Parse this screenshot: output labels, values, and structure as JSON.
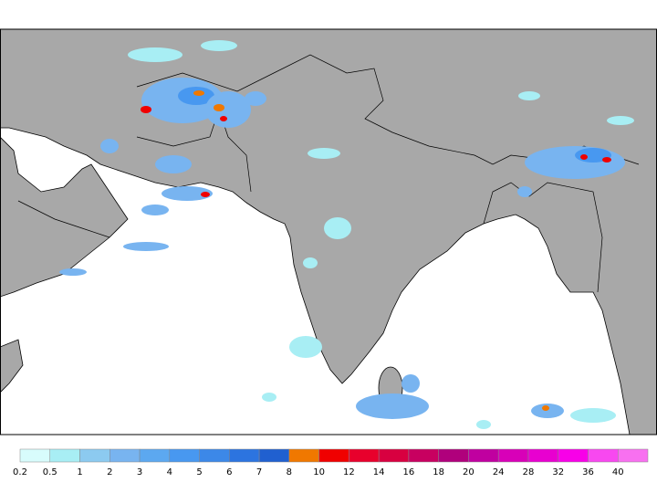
{
  "colorbar": {
    "ticks": [
      0.2,
      0.5,
      1,
      2,
      3,
      4,
      5,
      6,
      7,
      8,
      10,
      12,
      14,
      16,
      18,
      20,
      24,
      28,
      32,
      36,
      40
    ],
    "colors": [
      "#d8fcfc",
      "#a8eef4",
      "#8ccaf0",
      "#78b4f0",
      "#5ca8f0",
      "#4898f0",
      "#3c88e8",
      "#2c74e0",
      "#2060d0",
      "#f07800",
      "#f00000",
      "#e8002c",
      "#d80040",
      "#c80060",
      "#b0007c",
      "#c000a0",
      "#d800b8",
      "#e800d0",
      "#f800e8",
      "#f848f0",
      "#f870f0"
    ]
  }
}
